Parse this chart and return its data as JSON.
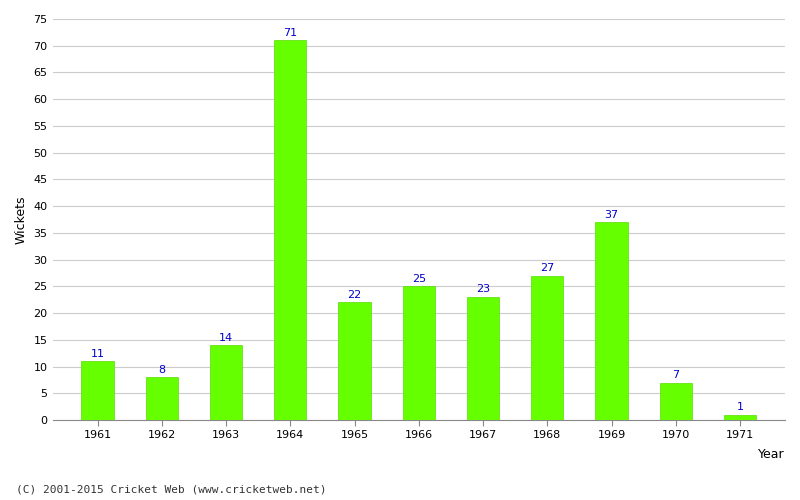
{
  "years": [
    1961,
    1962,
    1963,
    1964,
    1965,
    1966,
    1967,
    1968,
    1969,
    1970,
    1971
  ],
  "wickets": [
    11,
    8,
    14,
    71,
    22,
    25,
    23,
    27,
    37,
    7,
    1
  ],
  "bar_color": "#66ff00",
  "bar_edge_color": "#55dd00",
  "label_color": "#0000cc",
  "ylabel": "Wickets",
  "ylim": [
    0,
    75
  ],
  "yticks": [
    0,
    5,
    10,
    15,
    20,
    25,
    30,
    35,
    40,
    45,
    50,
    55,
    60,
    65,
    70,
    75
  ],
  "background_color": "#ffffff",
  "grid_color": "#cccccc",
  "footer": "(C) 2001-2015 Cricket Web (www.cricketweb.net)",
  "label_fontsize": 8,
  "axis_label_fontsize": 9,
  "tick_fontsize": 8,
  "bar_width": 0.5
}
